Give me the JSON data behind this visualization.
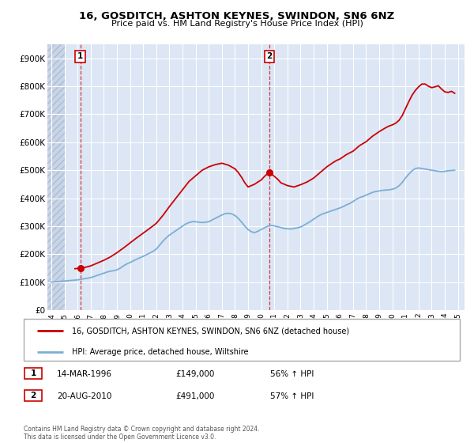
{
  "title": "16, GOSDITCH, ASHTON KEYNES, SWINDON, SN6 6NZ",
  "subtitle": "Price paid vs. HM Land Registry's House Price Index (HPI)",
  "ylim": [
    0,
    950000
  ],
  "yticks": [
    0,
    100000,
    200000,
    300000,
    400000,
    500000,
    600000,
    700000,
    800000,
    900000
  ],
  "ytick_labels": [
    "£0",
    "£100K",
    "£200K",
    "£300K",
    "£400K",
    "£500K",
    "£600K",
    "£700K",
    "£800K",
    "£900K"
  ],
  "xlim_start": 1993.7,
  "xlim_end": 2025.5,
  "xticks": [
    1994,
    1995,
    1996,
    1997,
    1998,
    1999,
    2000,
    2001,
    2002,
    2003,
    2004,
    2005,
    2006,
    2007,
    2008,
    2009,
    2010,
    2011,
    2012,
    2013,
    2014,
    2015,
    2016,
    2017,
    2018,
    2019,
    2020,
    2021,
    2022,
    2023,
    2024,
    2025
  ],
  "background_color": "#ffffff",
  "plot_bg_color": "#dce6f5",
  "grid_color": "#ffffff",
  "red_line_color": "#cc0000",
  "blue_line_color": "#7bafd4",
  "sale1_x": 1996.2,
  "sale1_y": 149000,
  "sale1_label": "1",
  "sale1_date": "14-MAR-1996",
  "sale1_price": "£149,000",
  "sale1_hpi": "56% ↑ HPI",
  "sale2_x": 2010.63,
  "sale2_y": 491000,
  "sale2_label": "2",
  "sale2_date": "20-AUG-2010",
  "sale2_price": "£491,000",
  "sale2_hpi": "57% ↑ HPI",
  "legend_label_red": "16, GOSDITCH, ASHTON KEYNES, SWINDON, SN6 6NZ (detached house)",
  "legend_label_blue": "HPI: Average price, detached house, Wiltshire",
  "footer": "Contains HM Land Registry data © Crown copyright and database right 2024.\nThis data is licensed under the Open Government Licence v3.0.",
  "hpi_data_x": [
    1994.0,
    1994.25,
    1994.5,
    1994.75,
    1995.0,
    1995.25,
    1995.5,
    1995.75,
    1996.0,
    1996.25,
    1996.5,
    1996.75,
    1997.0,
    1997.25,
    1997.5,
    1997.75,
    1998.0,
    1998.25,
    1998.5,
    1998.75,
    1999.0,
    1999.25,
    1999.5,
    1999.75,
    2000.0,
    2000.25,
    2000.5,
    2000.75,
    2001.0,
    2001.25,
    2001.5,
    2001.75,
    2002.0,
    2002.25,
    2002.5,
    2002.75,
    2003.0,
    2003.25,
    2003.5,
    2003.75,
    2004.0,
    2004.25,
    2004.5,
    2004.75,
    2005.0,
    2005.25,
    2005.5,
    2005.75,
    2006.0,
    2006.25,
    2006.5,
    2006.75,
    2007.0,
    2007.25,
    2007.5,
    2007.75,
    2008.0,
    2008.25,
    2008.5,
    2008.75,
    2009.0,
    2009.25,
    2009.5,
    2009.75,
    2010.0,
    2010.25,
    2010.5,
    2010.75,
    2011.0,
    2011.25,
    2011.5,
    2011.75,
    2012.0,
    2012.25,
    2012.5,
    2012.75,
    2013.0,
    2013.25,
    2013.5,
    2013.75,
    2014.0,
    2014.25,
    2014.5,
    2014.75,
    2015.0,
    2015.25,
    2015.5,
    2015.75,
    2016.0,
    2016.25,
    2016.5,
    2016.75,
    2017.0,
    2017.25,
    2017.5,
    2017.75,
    2018.0,
    2018.25,
    2018.5,
    2018.75,
    2019.0,
    2019.25,
    2019.5,
    2019.75,
    2020.0,
    2020.25,
    2020.5,
    2020.75,
    2021.0,
    2021.25,
    2021.5,
    2021.75,
    2022.0,
    2022.25,
    2022.5,
    2022.75,
    2023.0,
    2023.25,
    2023.5,
    2023.75,
    2024.0,
    2024.25,
    2024.5,
    2024.75
  ],
  "hpi_data_y": [
    100000,
    101000,
    102000,
    103000,
    104000,
    105000,
    106000,
    107000,
    108000,
    110000,
    112000,
    114000,
    116000,
    120000,
    124000,
    128000,
    132000,
    136000,
    139000,
    141000,
    144000,
    150000,
    158000,
    165000,
    170000,
    176000,
    182000,
    187000,
    192000,
    198000,
    204000,
    210000,
    218000,
    232000,
    246000,
    258000,
    268000,
    276000,
    284000,
    292000,
    300000,
    308000,
    313000,
    316000,
    316000,
    314000,
    313000,
    314000,
    316000,
    322000,
    328000,
    334000,
    340000,
    345000,
    346000,
    344000,
    338000,
    328000,
    315000,
    300000,
    288000,
    280000,
    277000,
    282000,
    288000,
    294000,
    300000,
    303000,
    301000,
    298000,
    295000,
    292000,
    291000,
    290000,
    292000,
    294000,
    297000,
    303000,
    310000,
    317000,
    325000,
    333000,
    340000,
    345000,
    349000,
    353000,
    357000,
    361000,
    365000,
    370000,
    376000,
    381000,
    388000,
    396000,
    402000,
    406000,
    411000,
    416000,
    421000,
    424000,
    426000,
    428000,
    429000,
    430000,
    432000,
    436000,
    444000,
    456000,
    472000,
    486000,
    498000,
    506000,
    508000,
    506000,
    504000,
    502000,
    500000,
    498000,
    496000,
    495000,
    496000,
    498000,
    499000,
    500000
  ],
  "red_data_x": [
    1995.8,
    1996.0,
    1996.2,
    1996.5,
    1997.0,
    1997.5,
    1998.0,
    1998.5,
    1999.0,
    1999.5,
    2000.0,
    2000.5,
    2001.0,
    2001.5,
    2002.0,
    2002.5,
    2003.0,
    2003.5,
    2004.0,
    2004.5,
    2005.0,
    2005.5,
    2006.0,
    2006.5,
    2007.0,
    2007.5,
    2008.0,
    2008.25,
    2008.5,
    2008.75,
    2009.0,
    2009.25,
    2009.5,
    2009.75,
    2010.0,
    2010.25,
    2010.5,
    2010.63,
    2010.75,
    2011.0,
    2011.25,
    2011.5,
    2012.0,
    2012.5,
    2013.0,
    2013.5,
    2014.0,
    2014.25,
    2014.5,
    2014.75,
    2015.0,
    2015.25,
    2015.5,
    2015.75,
    2016.0,
    2016.25,
    2016.5,
    2016.75,
    2017.0,
    2017.25,
    2017.5,
    2017.75,
    2018.0,
    2018.25,
    2018.5,
    2018.75,
    2019.0,
    2019.25,
    2019.5,
    2019.75,
    2020.0,
    2020.25,
    2020.5,
    2020.75,
    2021.0,
    2021.25,
    2021.5,
    2021.75,
    2022.0,
    2022.25,
    2022.5,
    2022.75,
    2023.0,
    2023.25,
    2023.5,
    2023.75,
    2024.0,
    2024.25,
    2024.5,
    2024.75
  ],
  "red_data_y": [
    148000,
    149000,
    149000,
    152000,
    158000,
    168000,
    178000,
    190000,
    205000,
    222000,
    240000,
    258000,
    275000,
    292000,
    310000,
    338000,
    370000,
    400000,
    430000,
    460000,
    480000,
    500000,
    512000,
    520000,
    525000,
    518000,
    505000,
    492000,
    475000,
    455000,
    440000,
    445000,
    450000,
    458000,
    465000,
    478000,
    488000,
    491000,
    488000,
    478000,
    468000,
    455000,
    445000,
    440000,
    448000,
    458000,
    472000,
    482000,
    492000,
    502000,
    512000,
    520000,
    528000,
    535000,
    540000,
    548000,
    556000,
    562000,
    568000,
    578000,
    588000,
    595000,
    602000,
    612000,
    622000,
    630000,
    638000,
    645000,
    652000,
    658000,
    662000,
    668000,
    678000,
    695000,
    720000,
    745000,
    768000,
    785000,
    798000,
    808000,
    808000,
    800000,
    795000,
    798000,
    802000,
    790000,
    780000,
    778000,
    782000,
    775000
  ]
}
